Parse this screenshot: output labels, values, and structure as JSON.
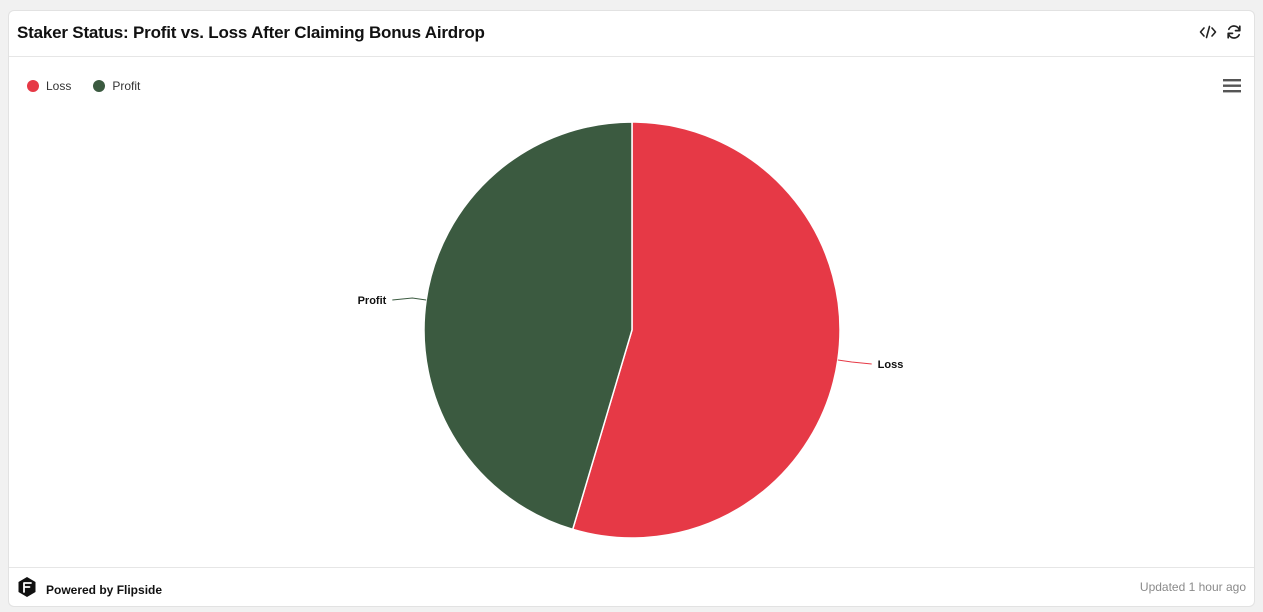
{
  "header": {
    "title": "Staker Status: Profit vs. Loss After Claiming Bonus Airdrop",
    "icons": [
      "code-icon",
      "refresh-icon"
    ]
  },
  "chart_data": {
    "type": "pie",
    "title": "Staker Status: Profit vs. Loss After Claiming Bonus Airdrop",
    "slices": [
      {
        "label": "Loss",
        "value": 54.6,
        "color": "#e63946"
      },
      {
        "label": "Profit",
        "value": 45.4,
        "color": "#3b5a40"
      }
    ],
    "legend": {
      "position": "top-left",
      "items": [
        "Loss",
        "Profit"
      ]
    }
  },
  "footer": {
    "brand": "Powered by Flipside",
    "updated": "Updated 1 hour ago"
  }
}
